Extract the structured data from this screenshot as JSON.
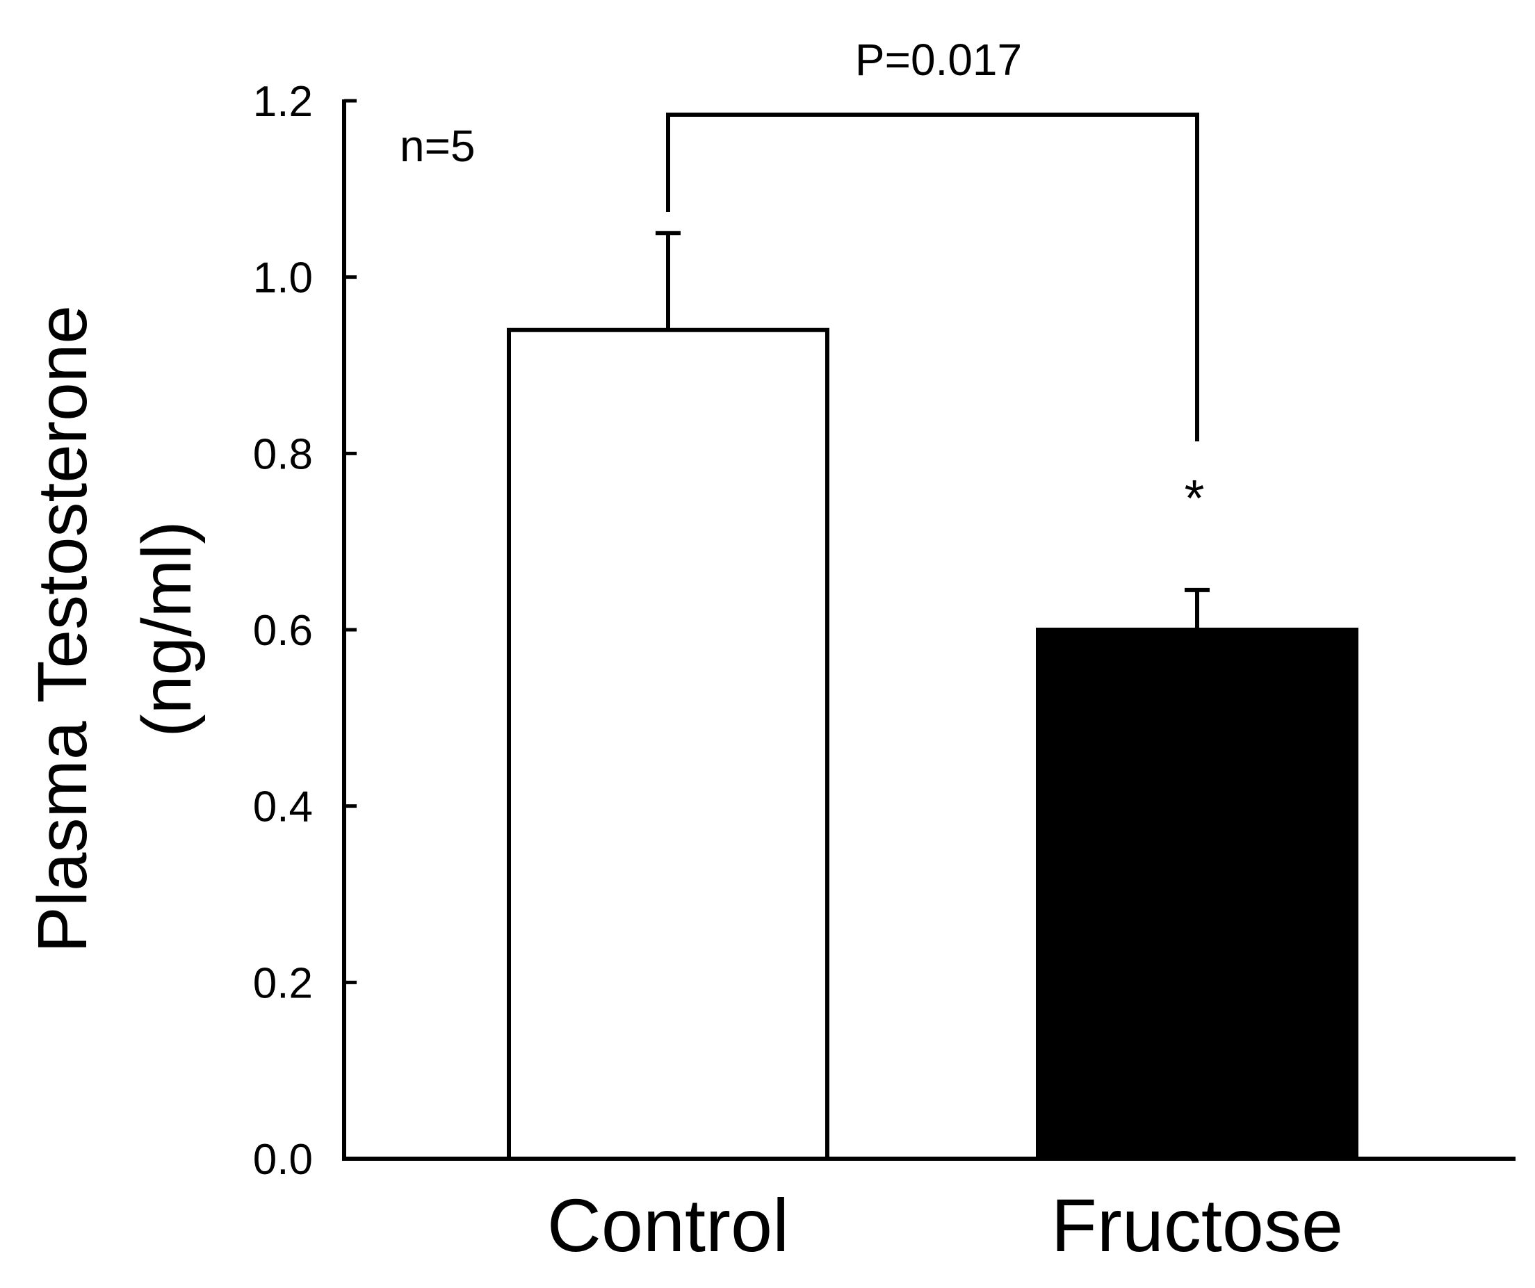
{
  "chart_data": {
    "type": "bar",
    "categories": [
      "Control",
      "Fructose"
    ],
    "values": [
      0.94,
      0.6
    ],
    "errors": [
      0.11,
      0.045
    ],
    "bar_colors": [
      "#ffffff",
      "#000000"
    ],
    "ylabel_line1": "Plasma Testosterone",
    "ylabel_line2": "(ng/ml)",
    "ylim": [
      0,
      1.2
    ],
    "yticks": [
      "0.0",
      "0.2",
      "0.4",
      "0.6",
      "0.8",
      "1.0",
      "1.2"
    ],
    "annotations": {
      "n": "n=5",
      "p_value": "P=0.017",
      "significance": "*"
    },
    "grid": false,
    "legend": "none"
  }
}
